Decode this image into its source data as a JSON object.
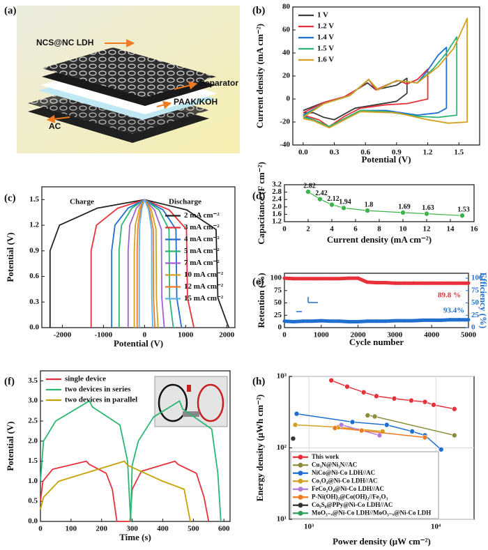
{
  "illustration": {
    "panel": "(a)",
    "labels": [
      "NCS@NC LDH",
      "Separator",
      "PAAK/KOH",
      "AC"
    ]
  },
  "chart_data": [
    {
      "type": "line",
      "panel": "(b)",
      "xlabel": "Potential (V)",
      "ylabel": "Current density (mA cm⁻²)",
      "xlim": [
        -0.1,
        1.7
      ],
      "xticks": [
        {
          "value": 0,
          "label": "0.0"
        },
        0.3,
        0.6,
        0.9,
        1.2,
        1.5
      ],
      "ylim": [
        -40,
        80
      ],
      "yticks": [
        -40,
        -20,
        0,
        20,
        40,
        60,
        80
      ],
      "legend": "upper left",
      "series": [
        {
          "name": "1 V",
          "color": "#3a3a3a",
          "x": [
            0,
            0.2,
            0.4,
            0.55,
            0.62,
            0.7,
            0.8,
            0.9,
            1.0,
            1.0,
            0.9,
            0.7,
            0.5,
            0.3,
            0.2,
            0.1,
            0
          ],
          "values": [
            -10,
            -3,
            2,
            10,
            14,
            8,
            10,
            12,
            18,
            5,
            -2,
            -5,
            -8,
            -18,
            -16,
            -12,
            -12
          ]
        },
        {
          "name": "1.2 V",
          "color": "#e8303a",
          "x": [
            0,
            0.2,
            0.4,
            0.55,
            0.63,
            0.7,
            0.85,
            0.92,
            1.0,
            1.1,
            1.2,
            1.2,
            1.0,
            0.8,
            0.55,
            0.4,
            0.25,
            0.15,
            0
          ],
          "values": [
            -12,
            -3,
            2,
            10,
            17,
            8,
            14,
            16,
            13,
            17,
            26,
            0,
            -4,
            -5,
            -8,
            -15,
            -24,
            -18,
            -14
          ]
        },
        {
          "name": "1.4 V",
          "color": "#1f6fd1",
          "x": [
            0,
            0.2,
            0.45,
            0.63,
            0.72,
            0.9,
            1.1,
            1.2,
            1.3,
            1.38,
            1.38,
            1.3,
            1.1,
            0.8,
            0.55,
            0.4,
            0.25,
            0.1,
            0
          ],
          "values": [
            -14,
            -4,
            3,
            17,
            8,
            16,
            14,
            25,
            38,
            45,
            -8,
            -12,
            -14,
            -10,
            -10,
            -17,
            -24,
            -18,
            -15
          ]
        },
        {
          "name": "1.5 V",
          "color": "#2bb673",
          "x": [
            0,
            0.2,
            0.45,
            0.63,
            0.72,
            0.9,
            1.1,
            1.25,
            1.38,
            1.48,
            1.48,
            1.3,
            1.1,
            0.8,
            0.55,
            0.4,
            0.25,
            0.1,
            0
          ],
          "values": [
            -15,
            -4,
            3,
            17,
            8,
            16,
            14,
            26,
            40,
            54,
            -14,
            -16,
            -15,
            -11,
            -10,
            -17,
            -24,
            -18,
            -16
          ]
        },
        {
          "name": "1.6 V",
          "color": "#d4a020",
          "x": [
            0,
            0.2,
            0.45,
            0.63,
            0.72,
            0.9,
            1.1,
            1.3,
            1.45,
            1.58,
            1.58,
            1.4,
            1.2,
            0.9,
            0.55,
            0.4,
            0.25,
            0.1,
            0
          ],
          "values": [
            -16,
            -4,
            3,
            17,
            8,
            16,
            14,
            28,
            44,
            70,
            -20,
            -21,
            -18,
            -12,
            -11,
            -18,
            -25,
            -19,
            -17
          ]
        }
      ]
    },
    {
      "type": "line",
      "panel": "(c)",
      "xlabel": "Potential (V)",
      "ylabel": "Potential (V)",
      "annotations": [
        "Charge",
        "Discharge"
      ],
      "xlim": [
        -2500,
        2200
      ],
      "xticks": [
        -2000,
        -1000,
        0,
        1000,
        2000
      ],
      "ylim": [
        0,
        1.65
      ],
      "yticks": [
        {
          "value": 0,
          "label": "0.0"
        },
        0.3,
        0.6,
        0.9,
        1.2,
        1.5
      ],
      "legend": "center right",
      "series": [
        {
          "name": "2 mA cm⁻²",
          "color": "#222222",
          "x": [
            -2300,
            -2300,
            -2070,
            -1150,
            0,
            1025,
            1740,
            1785,
            2050
          ],
          "values": [
            0,
            0.9,
            1.2,
            1.4,
            1.5,
            1.38,
            1.15,
            0.35,
            0
          ]
        },
        {
          "name": "3 mA cm⁻²",
          "color": "#e8303a",
          "x": [
            -1300,
            -1300,
            -1170,
            -650,
            0,
            600,
            1020,
            1045,
            1200
          ],
          "values": [
            0,
            0.9,
            1.2,
            1.4,
            1.5,
            1.38,
            1.15,
            0.35,
            0
          ]
        },
        {
          "name": "4 mA cm⁻²",
          "color": "#1f6fd1",
          "x": [
            -800,
            -800,
            -720,
            -400,
            0,
            450,
            765,
            785,
            900
          ],
          "values": [
            0,
            0.9,
            1.2,
            1.4,
            1.5,
            1.38,
            1.15,
            0.35,
            0
          ]
        },
        {
          "name": "5 mA cm⁻²",
          "color": "#2bb673",
          "x": [
            -620,
            -620,
            -560,
            -310,
            0,
            350,
            595,
            610,
            700
          ],
          "values": [
            0,
            0.9,
            1.2,
            1.4,
            1.5,
            1.38,
            1.15,
            0.35,
            0
          ]
        },
        {
          "name": "7 mA cm⁻²",
          "color": "#a35fd6",
          "x": [
            -400,
            -400,
            -360,
            -200,
            0,
            240,
            410,
            420,
            480
          ],
          "values": [
            0,
            0.9,
            1.2,
            1.4,
            1.5,
            1.38,
            1.15,
            0.35,
            0
          ]
        },
        {
          "name": "10 mA cm⁻²",
          "color": "#d4a020",
          "x": [
            -250,
            -250,
            -225,
            -125,
            0,
            165,
            280,
            290,
            330
          ],
          "values": [
            0,
            0.9,
            1.2,
            1.4,
            1.5,
            1.38,
            1.15,
            0.35,
            0
          ]
        },
        {
          "name": "12 mA cm⁻²",
          "color": "#f07a20",
          "x": [
            -180,
            -180,
            -160,
            -90,
            0,
            125,
            212,
            218,
            250
          ],
          "values": [
            0,
            0.9,
            1.2,
            1.4,
            1.5,
            1.38,
            1.15,
            0.35,
            0
          ]
        },
        {
          "name": "15 mA cm⁻²",
          "color": "#5fb0e8",
          "x": [
            -130,
            -130,
            -117,
            -65,
            0,
            100,
            170,
            175,
            200
          ],
          "values": [
            0,
            0.9,
            1.2,
            1.4,
            1.5,
            1.38,
            1.15,
            0.35,
            0
          ]
        }
      ]
    },
    {
      "type": "line",
      "panel": "(d)",
      "xlabel": "Current density (mA cm⁻²)",
      "ylabel": "Capacitance (F cm⁻²)",
      "xlim": [
        0,
        16
      ],
      "xticks": [
        0,
        2,
        4,
        6,
        8,
        10,
        12,
        14,
        16
      ],
      "ylim": [
        1.2,
        3.2
      ],
      "yticks": [
        1.2,
        1.6,
        {
          "value": 2.0,
          "label": "2.0"
        },
        2.4,
        2.8,
        3.2
      ],
      "markers": true,
      "show_values": true,
      "x": [
        2,
        3,
        4,
        5,
        7,
        10,
        12,
        15
      ],
      "series": [
        {
          "color": "#3cb44b",
          "values": [
            2.82,
            2.42,
            2.12,
            1.94,
            1.8,
            1.69,
            1.63,
            1.53
          ]
        }
      ]
    },
    {
      "type": "line",
      "panel": "(e)",
      "xlabel": "Cycle number",
      "ylabel": "Retention (%)",
      "y2label": "Efficiency (%)",
      "annotations": [
        "89.8 %",
        "93.4%"
      ],
      "xlim": [
        0,
        5000
      ],
      "xticks": [
        0,
        1000,
        2000,
        3000,
        4000,
        5000
      ],
      "ylim": [
        0,
        110
      ],
      "yticks": [
        0,
        25,
        50,
        75,
        100
      ],
      "y2lim": [
        0,
        110
      ],
      "y2ticks": [
        0,
        25,
        50,
        75,
        100
      ],
      "markers": true,
      "x": [
        0,
        250,
        500,
        750,
        1000,
        1250,
        1500,
        1750,
        2000,
        2250,
        2500,
        2750,
        3000,
        3250,
        3500,
        3750,
        4000,
        4250,
        4500,
        4750,
        5000
      ],
      "series": [
        {
          "color": "#e8303a",
          "values": [
            100,
            99,
            99,
            99,
            99,
            99,
            99,
            100,
            100,
            92,
            91,
            91,
            90,
            90,
            90,
            90,
            90,
            90,
            90,
            90,
            90
          ]
        },
        {
          "color": "#1f6fd1",
          "axis": "y2",
          "values": [
            13,
            12,
            13,
            13,
            14,
            13,
            13,
            12,
            12,
            13,
            13,
            13,
            14,
            14,
            14,
            15,
            15,
            15,
            16,
            16,
            16
          ]
        }
      ]
    },
    {
      "type": "line",
      "panel": "(f)",
      "xlabel": "Time (s)",
      "ylabel": "Potential (V)",
      "xlim": [
        0,
        620
      ],
      "xticks": [
        0,
        100,
        200,
        300,
        400,
        500,
        600
      ],
      "ylim": [
        0,
        3.75
      ],
      "yticks": [
        {
          "value": 0,
          "label": "0.0"
        },
        0.5,
        {
          "value": 1,
          "label": "1.0"
        },
        1.5,
        {
          "value": 2,
          "label": "2.0"
        },
        2.5,
        {
          "value": 3,
          "label": "3.0"
        },
        3.5
      ],
      "legend": "upper left",
      "series": [
        {
          "name": "single device",
          "color": "#e8303a",
          "x": [
            0,
            8,
            40,
            150,
            160,
            215,
            235,
            250,
            293,
            300,
            330,
            440,
            450,
            510,
            535,
            550
          ],
          "values": [
            0.5,
            1.0,
            1.3,
            1.5,
            1.42,
            1.2,
            0.8,
            0,
            0,
            0.8,
            1.25,
            1.5,
            1.42,
            1.2,
            0.6,
            0
          ]
        },
        {
          "name": "two devices in series",
          "color": "#2bb673",
          "x": [
            0,
            10,
            50,
            160,
            170,
            260,
            285,
            295,
            300,
            320,
            370,
            455,
            465,
            560,
            580,
            590
          ],
          "values": [
            1.0,
            2.0,
            2.5,
            3.0,
            2.85,
            2.4,
            1.5,
            0,
            1.4,
            2.0,
            2.6,
            3.0,
            2.8,
            2.3,
            1.2,
            0
          ]
        },
        {
          "name": "two devices in parallel",
          "color": "#c8a000",
          "x": [
            0,
            10,
            60,
            275,
            285,
            400,
            470,
            490
          ],
          "values": [
            0.3,
            0.6,
            1.0,
            1.5,
            1.4,
            1.0,
            0.8,
            0
          ]
        }
      ]
    },
    {
      "type": "line",
      "panel": "(h)",
      "xlabel": "Power density (μW cm⁻²)",
      "ylabel": "Energy density (μWh cm⁻²)",
      "xscale": "log",
      "yscale": "log",
      "grid": true,
      "markers": true,
      "legend": "lower left",
      "xlim": [
        700,
        20000
      ],
      "xticks": [
        {
          "value": 1000,
          "label": "10³"
        },
        {
          "value": 10000,
          "label": "10⁴"
        }
      ],
      "ylim": [
        10,
        1000
      ],
      "yticks": [
        {
          "value": 10,
          "label": "10¹"
        },
        {
          "value": 100,
          "label": "10²"
        },
        {
          "value": 1000,
          "label": "10³"
        }
      ],
      "series": [
        {
          "name": "This work",
          "color": "#e8303a",
          "x": [
            1500,
            2000,
            2700,
            3400,
            4700,
            6400,
            8200,
            9600,
            14000
          ],
          "values": [
            880,
            720,
            600,
            530,
            490,
            460,
            440,
            400,
            350
          ]
        },
        {
          "name": "Cu₃N@Ni₃N//AC",
          "color": "#8c8c3c",
          "x": [
            2900,
            3300,
            14000
          ],
          "values": [
            285,
            275,
            150
          ]
        },
        {
          "name": "NiCo@Ni-Co LDH//AC",
          "color": "#1f6fd1",
          "x": [
            800,
            2200,
            4100,
            6500,
            8200,
            11000
          ],
          "values": [
            300,
            230,
            210,
            170,
            150,
            95
          ]
        },
        {
          "name": "Co₃O₄@Ni-Co LDH//AC",
          "color": "#d4a020",
          "x": [
            780,
            1700,
            3800
          ],
          "values": [
            210,
            195,
            170
          ]
        },
        {
          "name": "FeCo₂O₄@Ni-Co LDH//AC",
          "color": "#b57ad8",
          "x": [
            1800,
            3600
          ],
          "values": [
            210,
            150
          ]
        },
        {
          "name": "P-Ni(OH)₂@Co(OH)₂//Fe₂O₃",
          "color": "#f07a20",
          "x": [
            1600,
            2600,
            8200
          ],
          "values": [
            190,
            175,
            140
          ]
        },
        {
          "name": "Co₉S₈@PPy@Ni-Co LDH//AC",
          "color": "#333333",
          "x": [
            750
          ],
          "values": [
            135
          ]
        },
        {
          "name": "MoO₃₋ₓ@Ni-Co LDH//MoO₃₋ₓ@Ni-Co LDH",
          "color": "#2e9e5b",
          "x": [
            850,
            1700
          ],
          "values": [
            48,
            15
          ]
        }
      ]
    }
  ]
}
